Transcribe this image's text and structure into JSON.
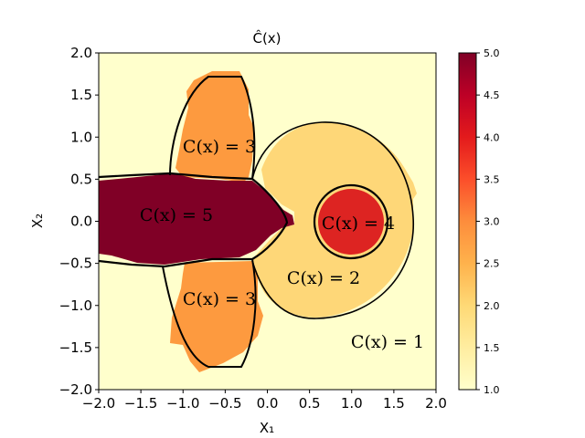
{
  "chart_data": {
    "type": "heatmap",
    "title": "Ĉ(x)",
    "xlabel": "X₁",
    "ylabel": "X₂",
    "xlim": [
      -2.0,
      2.0
    ],
    "ylim": [
      -2.0,
      2.0
    ],
    "x_ticks": [
      "−2.0",
      "−1.5",
      "−1.0",
      "−0.5",
      "0.0",
      "0.5",
      "1.0",
      "1.5",
      "2.0"
    ],
    "y_ticks": [
      "−2.0",
      "−1.5",
      "−1.0",
      "−0.5",
      "0.0",
      "0.5",
      "1.0",
      "1.5",
      "2.0"
    ],
    "x_tick_values": [
      -2.0,
      -1.5,
      -1.0,
      -0.5,
      0.0,
      0.5,
      1.0,
      1.5,
      2.0
    ],
    "y_tick_values": [
      -2.0,
      -1.5,
      -1.0,
      -0.5,
      0.0,
      0.5,
      1.0,
      1.5,
      2.0
    ],
    "colorbar": {
      "range": [
        1.0,
        5.0
      ],
      "ticks": [
        "1.0",
        "1.5",
        "2.0",
        "2.5",
        "3.0",
        "3.5",
        "4.0",
        "4.5",
        "5.0"
      ],
      "tick_values": [
        1.0,
        1.5,
        2.0,
        2.5,
        3.0,
        3.5,
        4.0,
        4.5,
        5.0
      ],
      "colormap": "YlOrRd",
      "colors": [
        "#ffffcc",
        "#ffeda0",
        "#fed976",
        "#feb24c",
        "#fd8d3c",
        "#fc4e2a",
        "#e31a1c",
        "#bd0026",
        "#800026"
      ]
    },
    "regions": [
      {
        "label": "C(x) = 5",
        "value": 5,
        "color": "#800026",
        "label_x": -1.05,
        "label_y": 0.05
      },
      {
        "label": "C(x) = 4",
        "value": 4,
        "color": "#dd2422",
        "label_x": 0.95,
        "label_y": 0.0
      },
      {
        "label": "C(x) = 3",
        "value": 3,
        "color": "#fd9a3f",
        "label_x": -0.55,
        "label_y": 0.85
      },
      {
        "label": "C(x) = 3",
        "value": 3,
        "color": "#fd9a3f",
        "label_x": -0.55,
        "label_y": -0.92
      },
      {
        "label": "C(x) = 2",
        "value": 2,
        "color": "#fed778",
        "label_x": 0.68,
        "label_y": -0.67
      },
      {
        "label": "C(x) = 1",
        "value": 1,
        "color": "#ffffcc",
        "label_x": 1.43,
        "label_y": -1.5
      }
    ]
  }
}
